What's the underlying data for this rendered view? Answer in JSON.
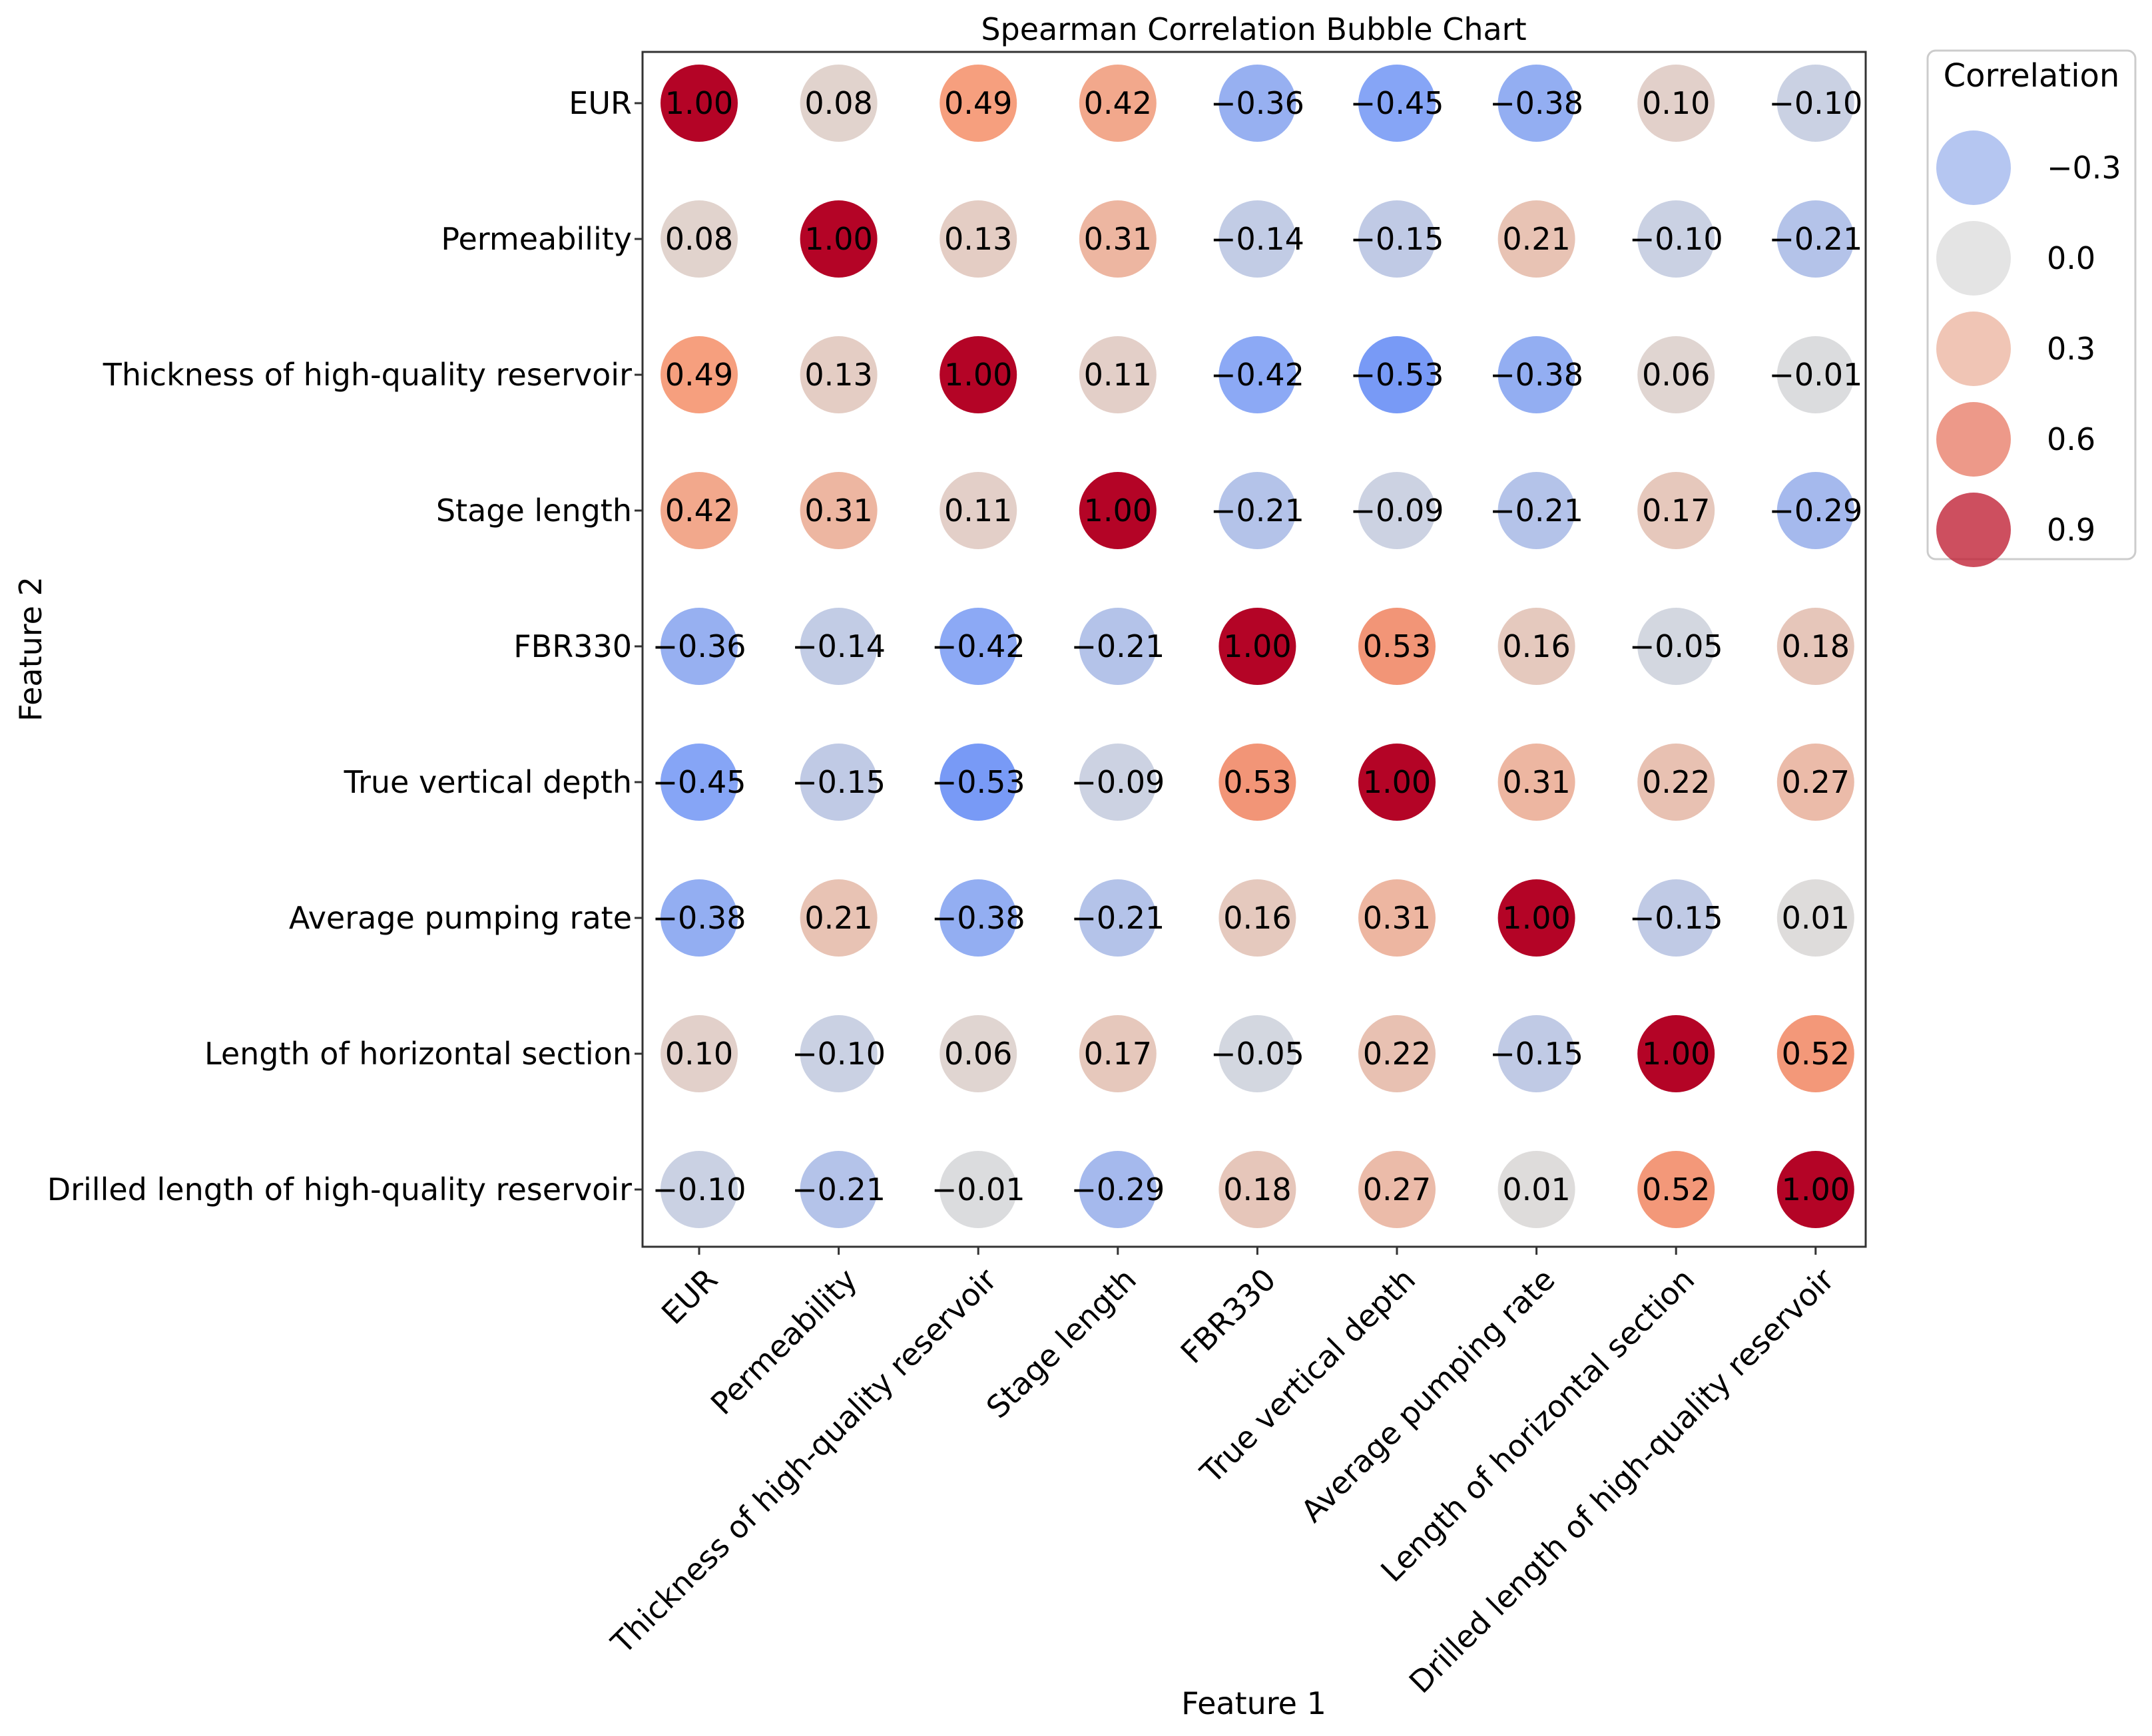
{
  "chart_data": {
    "type": "bubble-heatmap",
    "title": "Spearman Correlation Bubble Chart",
    "xlabel": "Feature 1",
    "ylabel": "Feature 2",
    "features": [
      "EUR",
      "Permeability",
      "Thickness of high-quality reservoir",
      "Stage length",
      "FBR330",
      "True vertical depth",
      "Average pumping rate",
      "Length of horizontal section",
      "Drilled length of high-quality reservoir"
    ],
    "matrix": [
      [
        1.0,
        0.08,
        0.49,
        0.42,
        -0.36,
        -0.45,
        -0.38,
        0.1,
        -0.1
      ],
      [
        0.08,
        1.0,
        0.13,
        0.31,
        -0.14,
        -0.15,
        0.21,
        -0.1,
        -0.21
      ],
      [
        0.49,
        0.13,
        1.0,
        0.11,
        -0.42,
        -0.53,
        -0.38,
        0.06,
        -0.01
      ],
      [
        0.42,
        0.31,
        0.11,
        1.0,
        -0.21,
        -0.09,
        -0.21,
        0.17,
        -0.29
      ],
      [
        -0.36,
        -0.14,
        -0.42,
        -0.21,
        1.0,
        0.53,
        0.16,
        -0.05,
        0.18
      ],
      [
        -0.45,
        -0.15,
        -0.53,
        -0.09,
        0.53,
        1.0,
        0.31,
        0.22,
        0.27
      ],
      [
        -0.38,
        0.21,
        -0.38,
        -0.21,
        0.16,
        0.31,
        1.0,
        -0.15,
        0.01
      ],
      [
        0.1,
        -0.1,
        0.06,
        0.17,
        -0.05,
        0.22,
        -0.15,
        1.0,
        0.52
      ],
      [
        -0.1,
        -0.21,
        -0.01,
        -0.29,
        0.18,
        0.27,
        0.01,
        0.52,
        1.0
      ]
    ],
    "colormap": "coolwarm",
    "color_range": [
      -1,
      1
    ],
    "legend": {
      "title": "Correlation",
      "entries": [
        {
          "label": "−0.3",
          "value": -0.3
        },
        {
          "label": "0.0",
          "value": 0.0
        },
        {
          "label": "0.3",
          "value": 0.3
        },
        {
          "label": "0.6",
          "value": 0.6
        },
        {
          "label": "0.9",
          "value": 0.9
        }
      ],
      "placement": "right"
    }
  }
}
